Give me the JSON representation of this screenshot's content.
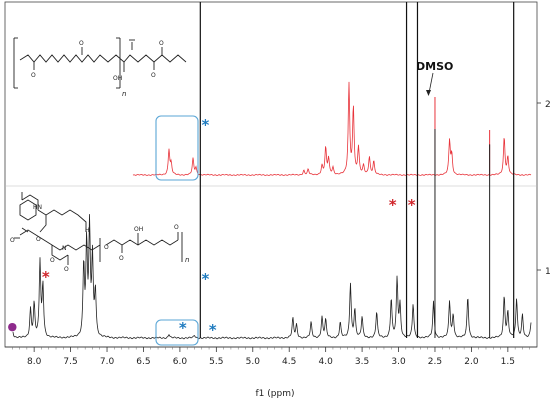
{
  "chart_data": {
    "type": "line",
    "xlabel": "f1 (ppm)",
    "xlim": [
      8.4,
      1.1
    ],
    "x_ticks": [
      "8.0",
      "7.5",
      "7.0",
      "6.5",
      "6.0",
      "5.5",
      "5.0",
      "4.5",
      "4.0",
      "3.5",
      "3.0",
      "2.5",
      "2.0",
      "1.5"
    ],
    "tick_values": [
      8.0,
      7.5,
      7.0,
      6.5,
      6.0,
      5.5,
      5.0,
      4.5,
      4.0,
      3.5,
      3.0,
      2.5,
      2.0,
      1.5
    ],
    "series": [
      {
        "key": "2",
        "color": "#e8333a",
        "peaks": [
          {
            "ppm": 6.15,
            "h": 0.28
          },
          {
            "ppm": 6.12,
            "h": 0.12
          },
          {
            "ppm": 5.82,
            "h": 0.18
          },
          {
            "ppm": 5.78,
            "h": 0.08
          },
          {
            "ppm": 4.3,
            "h": 0.05
          },
          {
            "ppm": 4.24,
            "h": 0.06
          },
          {
            "ppm": 4.05,
            "h": 0.1
          },
          {
            "ppm": 4.0,
            "h": 0.3
          },
          {
            "ppm": 3.96,
            "h": 0.18
          },
          {
            "ppm": 3.9,
            "h": 0.08
          },
          {
            "ppm": 3.68,
            "h": 1.0
          },
          {
            "ppm": 3.62,
            "h": 0.75
          },
          {
            "ppm": 3.55,
            "h": 0.3
          },
          {
            "ppm": 3.48,
            "h": 0.1
          },
          {
            "ppm": 3.4,
            "h": 0.2
          },
          {
            "ppm": 3.34,
            "h": 0.15
          },
          {
            "ppm": 2.3,
            "h": 0.38
          },
          {
            "ppm": 2.27,
            "h": 0.22
          },
          {
            "ppm": 1.55,
            "h": 0.42
          },
          {
            "ppm": 1.5,
            "h": 0.2
          }
        ]
      },
      {
        "key": "1",
        "color": "#222222",
        "peaks": [
          {
            "ppm": 8.3,
            "h": 0.08
          },
          {
            "ppm": 8.05,
            "h": 0.22
          },
          {
            "ppm": 8.0,
            "h": 0.26
          },
          {
            "ppm": 7.92,
            "h": 0.58
          },
          {
            "ppm": 7.88,
            "h": 0.4
          },
          {
            "ppm": 7.32,
            "h": 0.55
          },
          {
            "ppm": 7.28,
            "h": 0.7
          },
          {
            "ppm": 7.24,
            "h": 0.82
          },
          {
            "ppm": 7.2,
            "h": 0.6
          },
          {
            "ppm": 7.16,
            "h": 0.35
          },
          {
            "ppm": 6.15,
            "h": 0.03
          },
          {
            "ppm": 5.8,
            "h": 0.02
          },
          {
            "ppm": 4.45,
            "h": 0.15
          },
          {
            "ppm": 4.4,
            "h": 0.1
          },
          {
            "ppm": 4.2,
            "h": 0.12
          },
          {
            "ppm": 4.05,
            "h": 0.16
          },
          {
            "ppm": 4.0,
            "h": 0.14
          },
          {
            "ppm": 3.8,
            "h": 0.12
          },
          {
            "ppm": 3.66,
            "h": 0.42
          },
          {
            "ppm": 3.6,
            "h": 0.22
          },
          {
            "ppm": 3.5,
            "h": 0.16
          },
          {
            "ppm": 3.3,
            "h": 0.2
          },
          {
            "ppm": 3.1,
            "h": 0.3
          },
          {
            "ppm": 3.02,
            "h": 0.45
          },
          {
            "ppm": 2.98,
            "h": 0.25
          },
          {
            "ppm": 2.8,
            "h": 0.26
          },
          {
            "ppm": 2.52,
            "h": 0.28
          },
          {
            "ppm": 2.3,
            "h": 0.28
          },
          {
            "ppm": 2.25,
            "h": 0.18
          },
          {
            "ppm": 2.05,
            "h": 0.32
          },
          {
            "ppm": 1.55,
            "h": 0.32
          },
          {
            "ppm": 1.5,
            "h": 0.2
          },
          {
            "ppm": 1.38,
            "h": 0.3
          },
          {
            "ppm": 1.3,
            "h": 0.18
          },
          {
            "ppm": 1.18,
            "h": 0.12
          }
        ]
      }
    ],
    "tall_lines": [
      {
        "ppm": 5.72
      },
      {
        "ppm": 2.89
      },
      {
        "ppm": 2.74
      },
      {
        "ppm": 1.42
      }
    ],
    "sharp_lines": [
      {
        "ppm": 2.5,
        "series": "2",
        "h": 0.52
      },
      {
        "ppm": 1.75,
        "series": "2",
        "h": 0.3
      },
      {
        "ppm": 2.5,
        "series": "1",
        "h": 0.95
      },
      {
        "ppm": 1.75,
        "series": "1",
        "h": 0.88
      }
    ],
    "annotations": [
      {
        "label": "DMSO",
        "ppm": 2.5
      },
      {
        "label": "*",
        "color": "#1f7bbf",
        "ppm": 5.65,
        "series": "2"
      },
      {
        "label": "*",
        "color": "#1f7bbf",
        "ppm": 5.65,
        "series": "1"
      },
      {
        "label": "*",
        "color": "#1f7bbf",
        "ppm": 5.96,
        "series": "1",
        "boxed": true
      },
      {
        "label": "*",
        "color": "#1f7bbf",
        "ppm": 5.55,
        "series": "1"
      },
      {
        "label": "*",
        "color": "#d0262c",
        "ppm": 3.08
      },
      {
        "label": "*",
        "color": "#d0262c",
        "ppm": 2.82
      },
      {
        "label": "*",
        "color": "#d0262c",
        "ppm": 7.84
      },
      {
        "label": "●",
        "color": "#8e2a8c",
        "ppm": 8.3
      }
    ],
    "grid": false
  },
  "structure_1": {
    "subscript": "n"
  },
  "structure_2": {
    "subscript": "n"
  }
}
